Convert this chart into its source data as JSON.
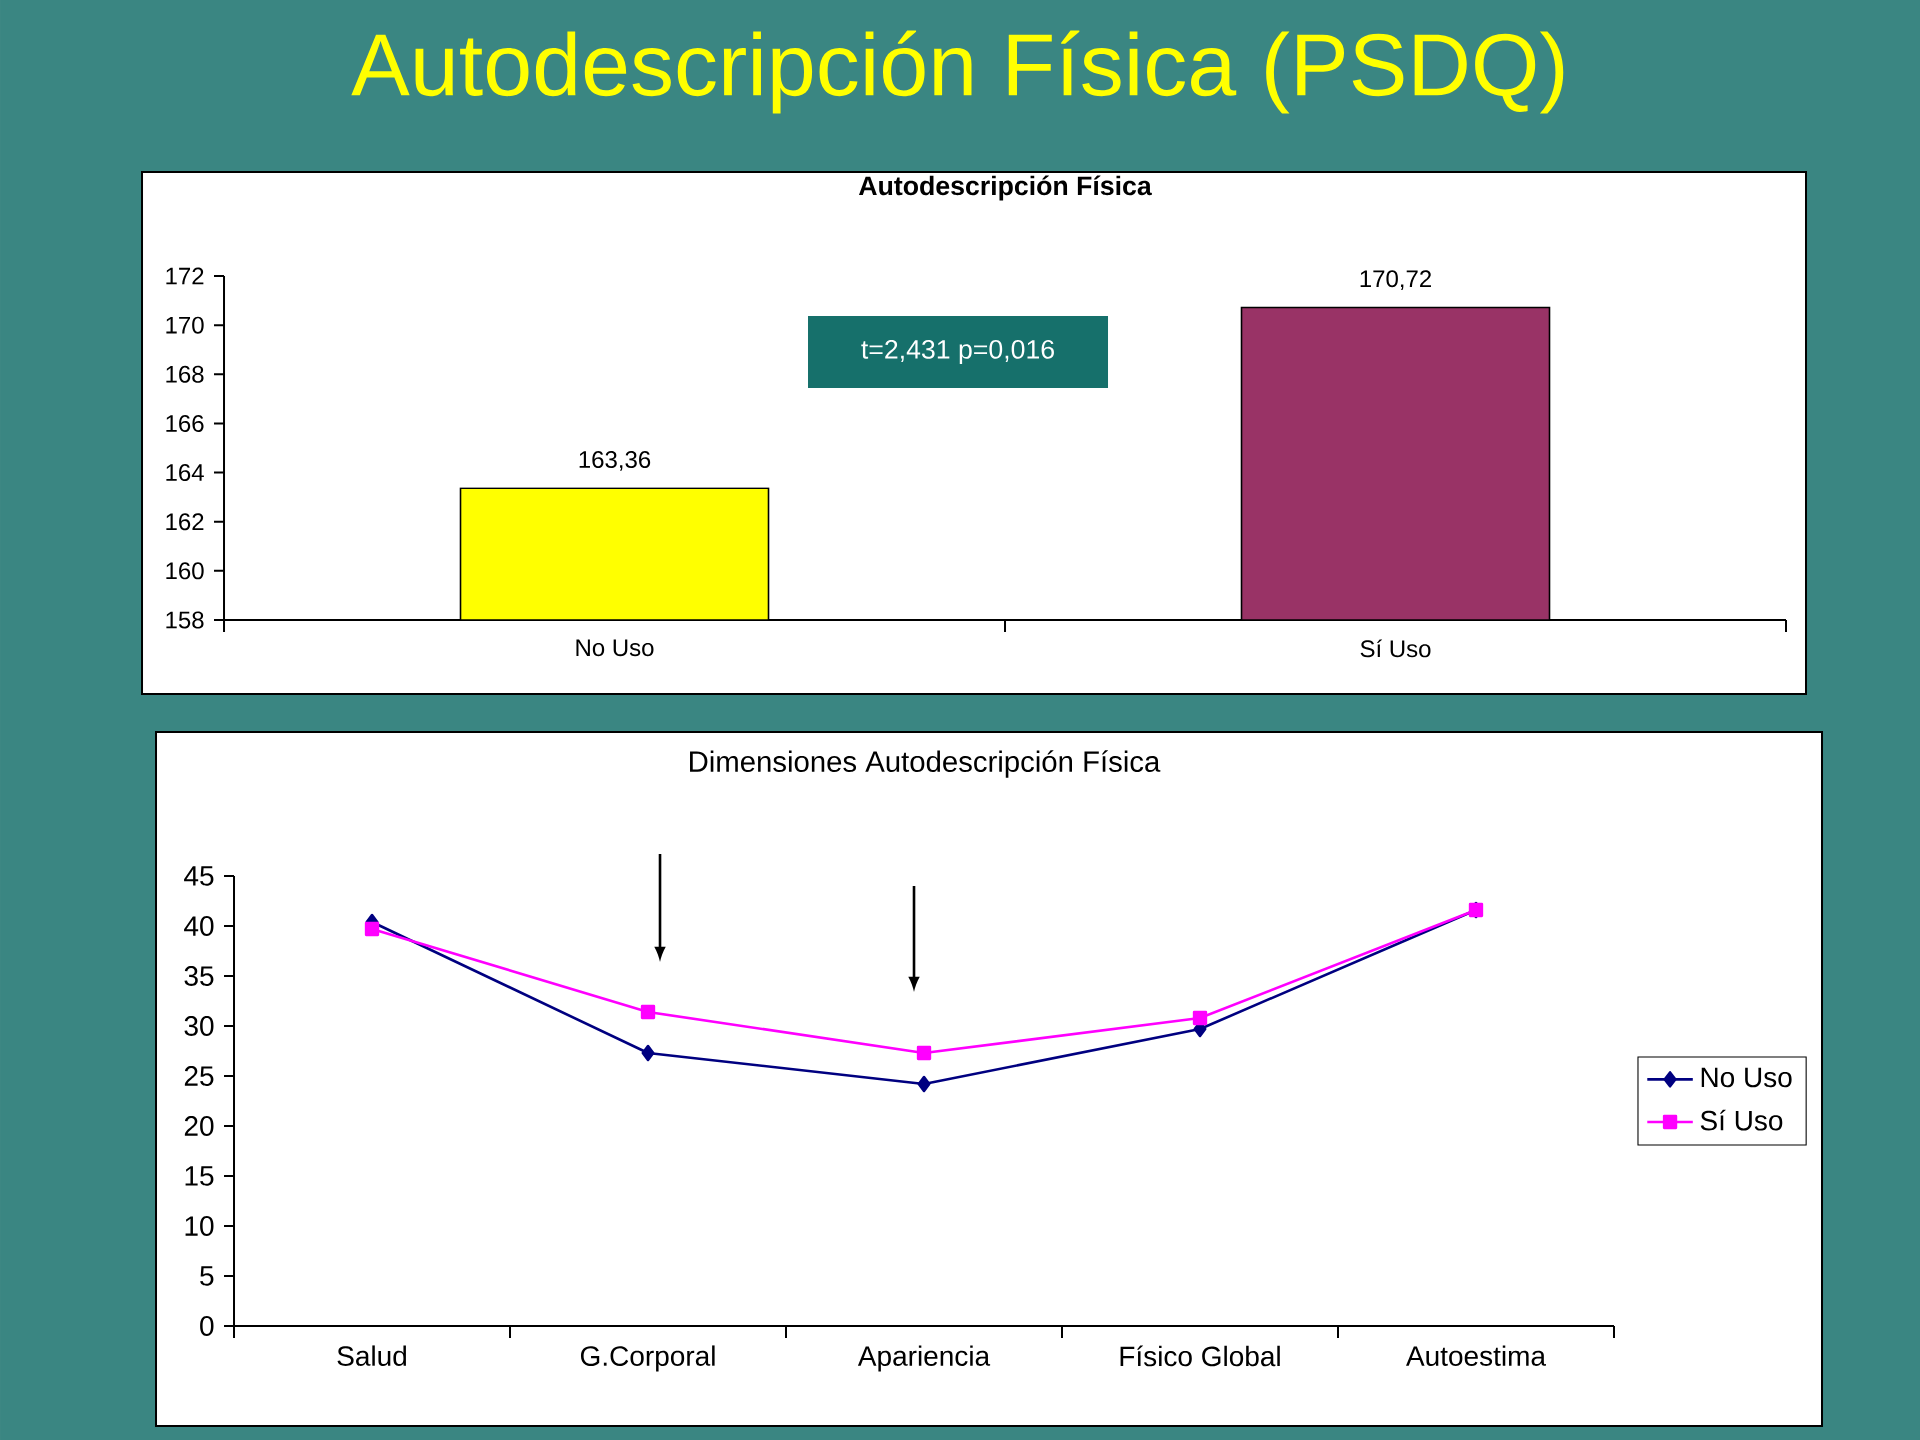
{
  "chart_data": [
    {
      "type": "other",
      "title": "Autodescripción Física (PSDQ)"
    },
    {
      "type": "bar",
      "title": "Autodescripción Física",
      "categories": [
        "No Uso",
        "Sí Uso"
      ],
      "values": [
        163.36,
        170.72
      ],
      "colors": [
        "#ffff00",
        "#993366"
      ],
      "value_labels": [
        "163,36",
        "170,72"
      ],
      "ylim": [
        158,
        172
      ],
      "yticks": [
        158,
        160,
        162,
        164,
        166,
        168,
        170,
        172
      ],
      "annotations": [
        "t=2,431 p=0,016"
      ]
    },
    {
      "type": "line",
      "title": "Dimensiones Autodescripción Física",
      "categories": [
        "Salud",
        "G.Corporal",
        "Apariencia",
        "Físico Global",
        "Autoestima"
      ],
      "series": [
        {
          "name": "No Uso",
          "color": "#000080",
          "marker": "diamond",
          "values": [
            40.4,
            27.3,
            24.2,
            29.7,
            41.6
          ]
        },
        {
          "name": "Sí Uso",
          "color": "#ff00ff",
          "marker": "square",
          "values": [
            39.7,
            31.4,
            27.3,
            30.8,
            41.6
          ]
        }
      ],
      "ylim": [
        0,
        45
      ],
      "yticks": [
        0,
        5,
        10,
        15,
        20,
        25,
        30,
        35,
        40,
        45
      ],
      "legend": "right"
    }
  ]
}
